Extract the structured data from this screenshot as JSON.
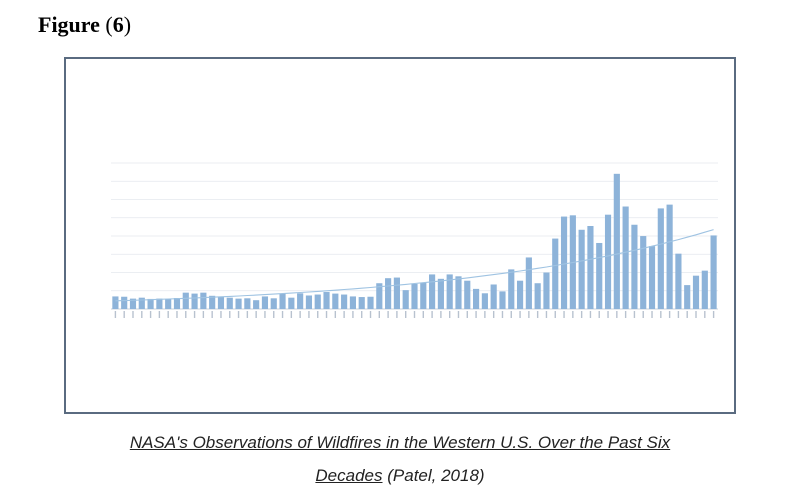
{
  "figure_heading": {
    "word": "Figure",
    "open": "(",
    "number": "6",
    "close": ")"
  },
  "caption": {
    "line1": "NASA's Observations of Wildfires in the Western U.S. Over the Past Six",
    "line2_underlined": "Decades",
    "line2_rest": " (Patel, 2018)"
  },
  "colors": {
    "bar": "#8db3d9",
    "trend": "#9fc3e2",
    "grid": "#e4e8ee",
    "frame": "#5a6b80"
  },
  "chart_data": {
    "type": "bar",
    "trendline": true,
    "grid": true,
    "values": [
      200,
      195,
      165,
      180,
      160,
      165,
      160,
      175,
      260,
      245,
      260,
      210,
      195,
      180,
      165,
      170,
      140,
      200,
      170,
      240,
      180,
      250,
      215,
      230,
      270,
      245,
      230,
      200,
      190,
      195,
      410,
      490,
      500,
      300,
      400,
      415,
      550,
      480,
      550,
      520,
      450,
      320,
      250,
      390,
      280,
      630,
      450,
      820,
      410,
      580,
      1120,
      1470,
      1490,
      1260,
      1320,
      1050,
      1500,
      2150,
      1630,
      1340,
      1160,
      1000,
      1600,
      1660,
      880,
      380,
      530,
      610,
      1170
    ]
  }
}
